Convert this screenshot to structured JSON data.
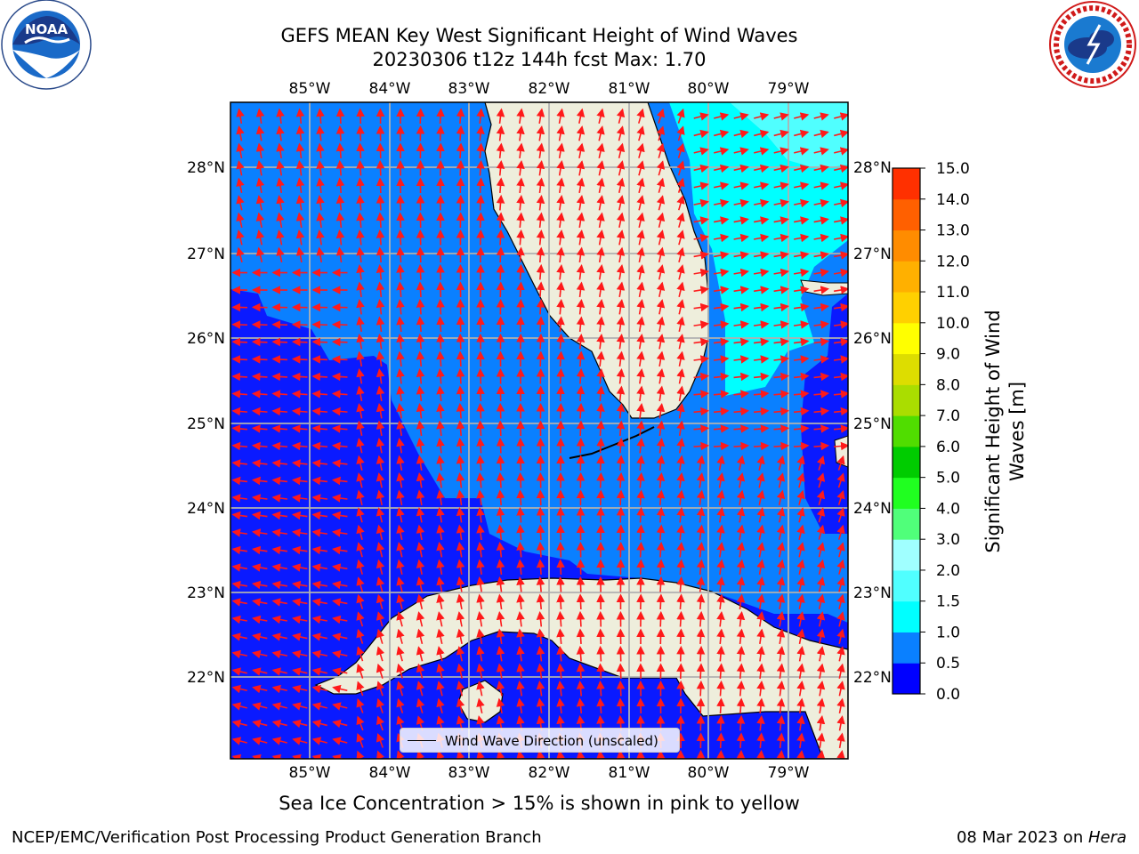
{
  "header": {
    "title_line1": "GEFS MEAN Key West Significant Height of Wind Waves",
    "title_line2": "20230306 t12z 144h fcst   Max: 1.70"
  },
  "logos": {
    "left": {
      "name": "noaa-logo",
      "text": "NOAA",
      "ring_text": "NATIONAL OCEANIC AND ATMOSPHERIC ADMINISTRATION · U.S. DEPARTMENT OF COMMERCE"
    },
    "right": {
      "name": "national-weather-service-logo",
      "ring_text": "NATIONAL WEATHER SERVICE"
    }
  },
  "map": {
    "lon_ticks": [
      "85°W",
      "84°W",
      "83°W",
      "82°W",
      "81°W",
      "80°W",
      "79°W"
    ],
    "lat_ticks": [
      "28°N",
      "27°N",
      "26°N",
      "25°N",
      "24°N",
      "23°N",
      "22°N"
    ],
    "colors": {
      "land": "#eeeedc",
      "band_0_05": "#0a1aff",
      "band_05_1": "#0a80ff",
      "band_1_15": "#00ffff",
      "band_15_2": "#50ffff",
      "grid": "#b0b0b0",
      "arrow": "#ff1a1a"
    },
    "legend_label": "Wind Wave Direction (unscaled)"
  },
  "colorbar": {
    "title_line1": "Significant Height of Wind",
    "title_line2": "Waves [m]",
    "levels": [
      "0.0",
      "0.5",
      "1.0",
      "1.5",
      "2.0",
      "3.0",
      "4.0",
      "5.0",
      "6.0",
      "7.0",
      "8.0",
      "9.0",
      "10.0",
      "11.0",
      "12.0",
      "13.0",
      "14.0",
      "15.0"
    ],
    "colors": [
      "#0000ff",
      "#0a80ff",
      "#00ffff",
      "#50ffff",
      "#a0ffff",
      "#50ff7a",
      "#20ff20",
      "#00cc00",
      "#50dd00",
      "#aadd00",
      "#dddd00",
      "#ffff00",
      "#ffd000",
      "#ffb000",
      "#ff8c00",
      "#ff6000",
      "#ff3000",
      "#ff0000"
    ]
  },
  "notes": {
    "sea_ice": "Sea Ice Concentration > 15% is shown in pink to yellow"
  },
  "footer": {
    "left": "NCEP/EMC/Verification Post Processing Product Generation Branch",
    "right_prefix": "08 Mar 2023 on ",
    "right_host": "Hera"
  }
}
